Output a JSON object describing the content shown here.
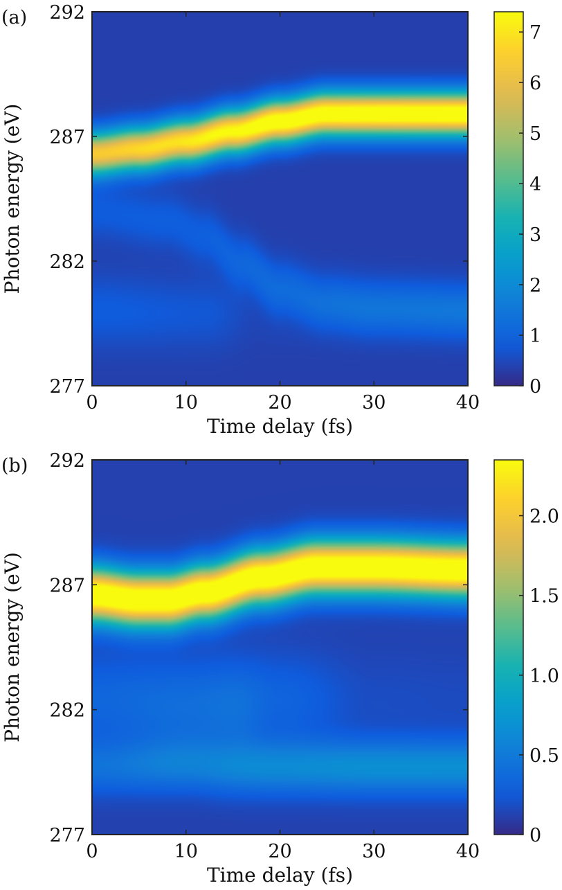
{
  "chart_data": [
    {
      "type": "heatmap",
      "panel_label": "(a)",
      "xlabel": "Time delay (fs)",
      "ylabel": "Photon energy (eV)",
      "xlim": [
        0,
        40
      ],
      "ylim": [
        277,
        292
      ],
      "x_ticks": [
        0,
        10,
        20,
        30,
        40
      ],
      "y_ticks": [
        277,
        282,
        287,
        292
      ],
      "colorbar": {
        "range": [
          0,
          7.4
        ],
        "ticks": [
          "0",
          "1",
          "2",
          "3",
          "4",
          "5",
          "6",
          "7"
        ],
        "tick_values": [
          0,
          1,
          2,
          3,
          4,
          5,
          6,
          7
        ],
        "colormap": "parula"
      },
      "background_level": 0.35,
      "bands": [
        {
          "center_points": [
            [
              0,
              286.3
            ],
            [
              5,
              286.5
            ],
            [
              10,
              286.8
            ],
            [
              15,
              287.2
            ],
            [
              20,
              287.6
            ],
            [
              25,
              287.9
            ],
            [
              30,
              287.9
            ],
            [
              35,
              287.9
            ],
            [
              40,
              287.9
            ]
          ],
          "amplitude_points": [
            [
              0,
              6.1
            ],
            [
              8,
              6.6
            ],
            [
              14,
              7.1
            ],
            [
              20,
              7.6
            ],
            [
              40,
              7.7
            ]
          ],
          "width_eV": 0.6
        },
        {
          "center_points": [
            [
              0,
              284.0
            ],
            [
              8,
              283.6
            ],
            [
              12,
              283.0
            ],
            [
              16,
              281.9
            ],
            [
              20,
              280.9
            ],
            [
              25,
              280.3
            ],
            [
              30,
              280.1
            ],
            [
              40,
              280.0
            ]
          ],
          "amplitude_points": [
            [
              0,
              0.5
            ],
            [
              10,
              0.55
            ],
            [
              20,
              0.8
            ],
            [
              30,
              1.05
            ],
            [
              40,
              1.15
            ]
          ],
          "width_eV": 0.75
        },
        {
          "center_points": [
            [
              0,
              280.0
            ],
            [
              10,
              279.9
            ],
            [
              15,
              279.9
            ],
            [
              40,
              279.9
            ]
          ],
          "amplitude_points": [
            [
              0,
              0.5
            ],
            [
              12,
              0.4
            ],
            [
              18,
              0.1
            ],
            [
              40,
              0.0
            ]
          ],
          "width_eV": 1.0
        }
      ]
    },
    {
      "type": "heatmap",
      "panel_label": "(b)",
      "xlabel": "Time delay (fs)",
      "ylabel": "Photon energy (eV)",
      "xlim": [
        0,
        40
      ],
      "ylim": [
        277,
        292
      ],
      "x_ticks": [
        0,
        10,
        20,
        30,
        40
      ],
      "y_ticks": [
        277,
        282,
        287,
        292
      ],
      "colorbar": {
        "range": [
          0,
          2.35
        ],
        "ticks": [
          "0",
          "0.5",
          "1.0",
          "1.5",
          "2.0"
        ],
        "tick_values": [
          0,
          0.5,
          1.0,
          1.5,
          2.0
        ],
        "colormap": "parula"
      },
      "background_level": 0.12,
      "bands": [
        {
          "center_points": [
            [
              0,
              286.6
            ],
            [
              5,
              286.4
            ],
            [
              8,
              286.4
            ],
            [
              12,
              286.7
            ],
            [
              18,
              287.3
            ],
            [
              24,
              287.7
            ],
            [
              30,
              287.7
            ],
            [
              40,
              287.6
            ]
          ],
          "amplitude_points": [
            [
              0,
              2.5
            ],
            [
              20,
              2.5
            ],
            [
              40,
              2.5
            ]
          ],
          "width_eV": 0.75
        },
        {
          "center_points": [
            [
              0,
              279.7
            ],
            [
              10,
              279.8
            ],
            [
              15,
              279.7
            ],
            [
              20,
              279.7
            ],
            [
              40,
              279.7
            ]
          ],
          "amplitude_points": [
            [
              0,
              0.3
            ],
            [
              10,
              0.4
            ],
            [
              20,
              0.5
            ],
            [
              30,
              0.55
            ],
            [
              40,
              0.55
            ]
          ],
          "width_eV": 0.75
        },
        {
          "center_points": [
            [
              0,
              282.4
            ],
            [
              10,
              282.2
            ],
            [
              15,
              282.2
            ],
            [
              20,
              282.4
            ],
            [
              40,
              282.4
            ]
          ],
          "amplitude_points": [
            [
              0,
              0.22
            ],
            [
              10,
              0.28
            ],
            [
              15,
              0.32
            ],
            [
              20,
              0.2
            ],
            [
              30,
              0.06
            ],
            [
              40,
              0.05
            ]
          ],
          "width_eV": 1.3
        }
      ]
    }
  ]
}
